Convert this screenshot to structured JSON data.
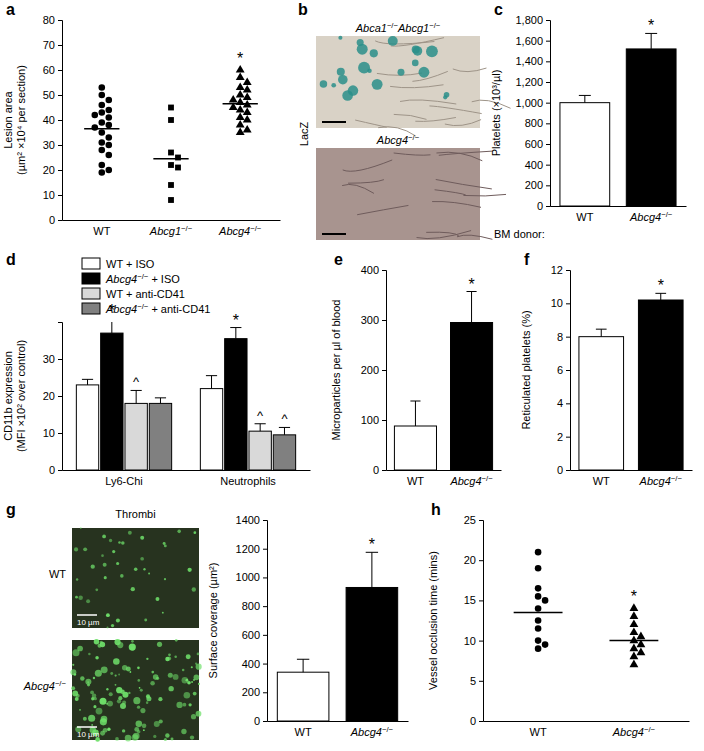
{
  "chart_data": [
    {
      "panel": "a",
      "type": "dot",
      "ylabel": [
        "Lesion area",
        "(µm² ×10⁴ per section)"
      ],
      "categories": [
        "WT",
        "Abcg1−/−",
        "Abcg4−/−"
      ],
      "groups": [
        {
          "marker": "circle",
          "values": [
            53,
            50,
            48,
            46,
            44,
            43,
            42,
            41,
            39,
            38,
            37,
            35,
            33,
            31,
            30,
            28,
            26,
            22,
            20,
            19
          ],
          "mean": 36.5
        },
        {
          "marker": "square",
          "values": [
            45,
            40,
            27,
            25,
            22,
            21,
            14,
            8
          ],
          "mean": 24.5
        },
        {
          "marker": "triangle",
          "values": [
            60,
            57,
            55,
            53,
            52,
            50,
            49,
            48,
            47,
            46,
            45,
            44,
            43,
            41,
            40,
            38,
            36,
            35
          ],
          "mean": 46.5
        }
      ],
      "annotations": [
        null,
        null,
        "*"
      ],
      "ylim": [
        0,
        80
      ],
      "yticks": [
        0,
        10,
        20,
        30,
        40,
        50,
        60,
        70,
        80
      ]
    },
    {
      "panel": "b",
      "type": "image",
      "ylabel": "LacZ",
      "images": [
        {
          "label": "Abca1−/−Abcg1−/−"
        },
        {
          "label": "Abcg4−/−"
        }
      ]
    },
    {
      "panel": "c",
      "type": "bar",
      "ylabel": "Platelets (×10³/µl)",
      "xlabel": "BM donor:",
      "categories": [
        "WT",
        "Abcg4−/−"
      ],
      "values": [
        1000,
        1520
      ],
      "errors": [
        70,
        150
      ],
      "colors": [
        "#ffffff",
        "#000000"
      ],
      "annotations": [
        null,
        "*"
      ],
      "ylim": [
        0,
        1800
      ],
      "yticks": [
        0,
        200,
        400,
        600,
        800,
        {
          "value": 1000,
          "label": "1,000"
        },
        {
          "value": 1200,
          "label": "1,200"
        },
        {
          "value": 1400,
          "label": "1,400"
        },
        {
          "value": 1600,
          "label": "1,600"
        },
        {
          "value": 1800,
          "label": "1,800"
        }
      ]
    },
    {
      "panel": "d",
      "type": "bar",
      "ylabel": [
        "CD11b expression",
        "(MFI ×10² over control)"
      ],
      "categories": [
        "Ly6-Chi",
        "Neutrophils"
      ],
      "legend": "top-left",
      "series": [
        {
          "name": "WT + ISO",
          "color": "#ffffff",
          "values": [
            23,
            22
          ],
          "errors": [
            1.5,
            3.5
          ],
          "annotations": [
            null,
            null
          ]
        },
        {
          "name": "Abcg4−/− + ISO",
          "color": "#000000",
          "values": [
            37,
            35.5
          ],
          "errors": [
            4,
            3
          ],
          "annotations": [
            "*",
            "*"
          ]
        },
        {
          "name": "WT + anti-CD41",
          "color": "#d9d9d9",
          "values": [
            18,
            10.5
          ],
          "errors": [
            3.5,
            2
          ],
          "annotations": [
            "^",
            "^"
          ]
        },
        {
          "name": "Abcg4−/− + anti-CD41",
          "color": "#808080",
          "values": [
            18,
            9.5
          ],
          "errors": [
            1.5,
            2
          ],
          "annotations": [
            null,
            "^"
          ]
        }
      ],
      "ylim": [
        0,
        40
      ],
      "yticks": [
        0,
        10,
        20,
        30
      ]
    },
    {
      "panel": "e",
      "type": "bar",
      "ylabel": "Microparticles per µl of blood",
      "categories": [
        "WT",
        "Abcg4−/−"
      ],
      "values": [
        88,
        295
      ],
      "errors": [
        50,
        62
      ],
      "colors": [
        "#ffffff",
        "#000000"
      ],
      "annotations": [
        null,
        "*"
      ],
      "ylim": [
        0,
        400
      ],
      "yticks": [
        0,
        100,
        200,
        300,
        400
      ]
    },
    {
      "panel": "f",
      "type": "bar",
      "ylabel": "Reticulated platelets (%)",
      "categories": [
        "WT",
        "Abcg4−/−"
      ],
      "values": [
        8.0,
        10.2
      ],
      "errors": [
        0.45,
        0.4
      ],
      "colors": [
        "#ffffff",
        "#000000"
      ],
      "annotations": [
        null,
        "*"
      ],
      "ylim": [
        0,
        12
      ],
      "yticks": [
        0,
        2,
        4,
        6,
        8,
        10,
        12
      ]
    },
    {
      "panel": "g",
      "type": "image",
      "title": "Thrombi",
      "images": [
        {
          "label": "WT",
          "scale_label": "10 µm"
        },
        {
          "label": "Abcg4−/−",
          "scale_label": "10 µm"
        }
      ]
    },
    {
      "type": "bar",
      "ylabel": "Surface coverage (µm²)",
      "categories": [
        "WT",
        "Abcg4−/−"
      ],
      "values": [
        340,
        930
      ],
      "errors": [
        90,
        245
      ],
      "colors": [
        "#ffffff",
        "#000000"
      ],
      "annotations": [
        null,
        "*"
      ],
      "ylim": [
        0,
        1400
      ],
      "yticks": [
        0,
        200,
        400,
        600,
        800,
        1000,
        1200,
        1400
      ]
    },
    {
      "panel": "h",
      "type": "dot",
      "ylabel": "Vessel occlusion time (mins)",
      "categories": [
        "WT",
        "Abcg4−/−"
      ],
      "groups": [
        {
          "marker": "circle",
          "values": [
            21,
            19,
            16.5,
            15.5,
            15,
            14,
            12.5,
            11.5,
            10,
            9.5,
            9
          ],
          "mean": 13.5
        },
        {
          "marker": "triangle",
          "values": [
            14,
            13,
            12,
            11,
            10.5,
            10,
            9.5,
            9,
            8.5,
            8,
            7
          ],
          "mean": 10
        }
      ],
      "annotations": [
        null,
        "*"
      ],
      "ylim": [
        0,
        25
      ],
      "yticks": [
        0,
        5,
        10,
        15,
        20,
        25
      ]
    }
  ]
}
